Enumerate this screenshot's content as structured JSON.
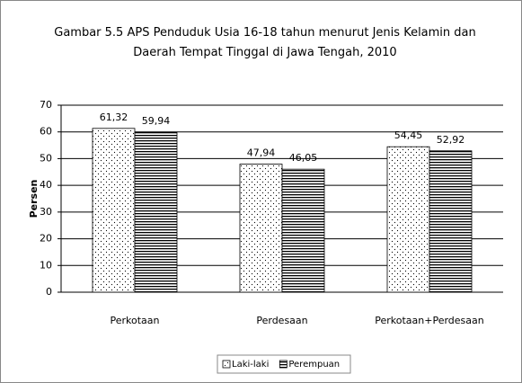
{
  "chart_data": {
    "type": "bar",
    "title": "Gambar 5.5 APS Penduduk Usia 16-18 tahun menurut Jenis Kelamin dan Daerah Tempat Tinggal di Jawa Tengah, 2010",
    "y_label": "Persen",
    "categories": [
      "Perkotaan",
      "Perdesaan",
      "Perkotaan+Perdesaan"
    ],
    "series": [
      {
        "name": "Laki-laki",
        "values": [
          61.32,
          47.94,
          54.45
        ],
        "value_labels": [
          "61,32",
          "47,94",
          "54,45"
        ]
      },
      {
        "name": "Perempuan",
        "values": [
          59.94,
          46.05,
          52.92
        ],
        "value_labels": [
          "59,94",
          "46,05",
          "52,92"
        ]
      }
    ],
    "ylim": [
      0,
      70
    ],
    "yticks": [
      0,
      10,
      20,
      30,
      40,
      50,
      60,
      70
    ],
    "grid": true,
    "legend": "bottom"
  }
}
